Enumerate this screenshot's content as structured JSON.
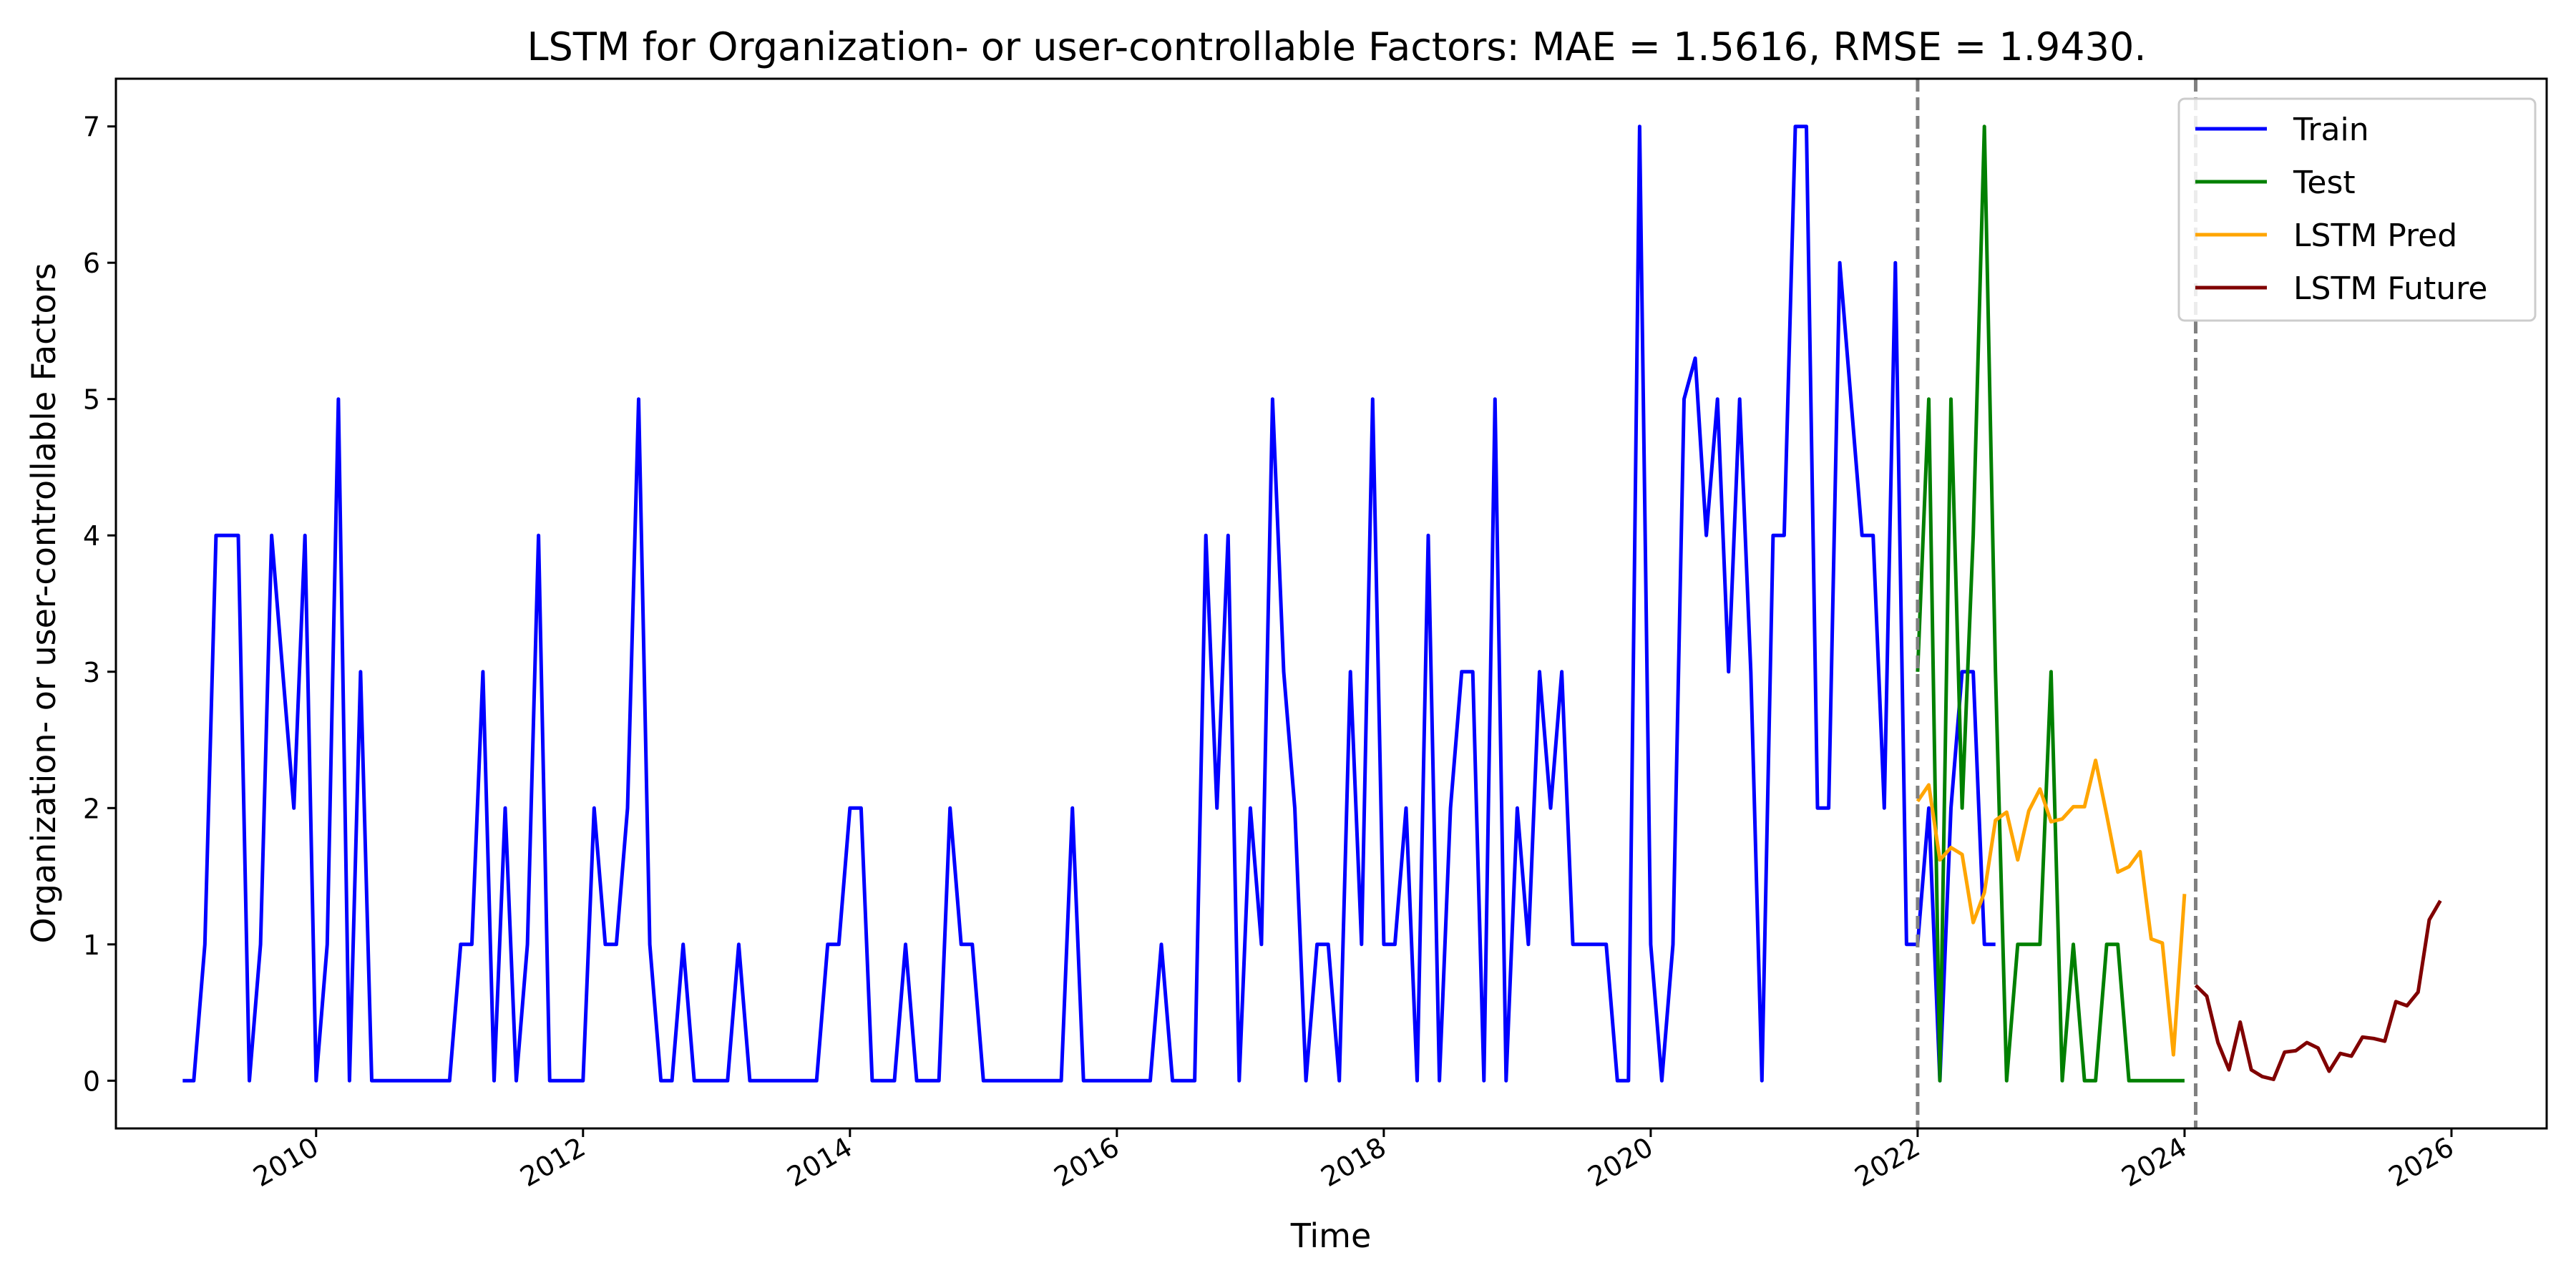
{
  "chart_data": {
    "type": "line",
    "title": "LSTM for Organization- or user-controllable Factors: MAE = 1.5616, RMSE = 1.9430.",
    "xlabel": "Time",
    "ylabel": "Organization- or user-controllable Factors",
    "xlim": [
      "2008-07-01",
      "2026-09-18"
    ],
    "ylim": [
      -0.35,
      7.35
    ],
    "x_ticks": [
      {
        "label": "2010",
        "date": "2010-01-01"
      },
      {
        "label": "2012",
        "date": "2012-01-01"
      },
      {
        "label": "2014",
        "date": "2014-01-01"
      },
      {
        "label": "2016",
        "date": "2016-01-01"
      },
      {
        "label": "2018",
        "date": "2018-01-01"
      },
      {
        "label": "2020",
        "date": "2020-01-01"
      },
      {
        "label": "2022",
        "date": "2022-01-01"
      },
      {
        "label": "2024",
        "date": "2024-01-01"
      },
      {
        "label": "2026",
        "date": "2026-01-01"
      }
    ],
    "y_ticks": [
      "0",
      "1",
      "2",
      "3",
      "4",
      "5",
      "6",
      "7"
    ],
    "grid": false,
    "legend_position": "top-right",
    "vertical_lines": [
      {
        "date": "2022-01-01",
        "style": "dashed",
        "color": "#808080"
      },
      {
        "date": "2024-02-01",
        "style": "dashed",
        "color": "#808080"
      }
    ],
    "series": [
      {
        "name": "Train",
        "color": "#0000ff",
        "start": "2009-01-01",
        "values": [
          0,
          0,
          1,
          4,
          4,
          4,
          0,
          1,
          4,
          3,
          2,
          4,
          0,
          1,
          5,
          0,
          3,
          0,
          0,
          0,
          0,
          0,
          0,
          0,
          0,
          1,
          1,
          3,
          0,
          2,
          0,
          1,
          4,
          0,
          0,
          0,
          0,
          2,
          1,
          1,
          2,
          5,
          1,
          0,
          0,
          1,
          0,
          0,
          0,
          0,
          1,
          0,
          0,
          0,
          0,
          0,
          0,
          0,
          1,
          1,
          2,
          2,
          0,
          0,
          0,
          1,
          0,
          0,
          0,
          2,
          1,
          1,
          0,
          0,
          0,
          0,
          0,
          0,
          0,
          0,
          2,
          0,
          0,
          0,
          0,
          0,
          0,
          0,
          1,
          0,
          0,
          0,
          4,
          2,
          4,
          0,
          2,
          1,
          5,
          3,
          2,
          0,
          1,
          1,
          0,
          3,
          1,
          5,
          1,
          1,
          2,
          0,
          4,
          0,
          2,
          3,
          3,
          0,
          5,
          0,
          2,
          1,
          3,
          2,
          3,
          1,
          1,
          1,
          1,
          0,
          0,
          7,
          1,
          0,
          1,
          5,
          5.3,
          4,
          5,
          3,
          5,
          3,
          0,
          4,
          4,
          7,
          7,
          2,
          2,
          6,
          5,
          4,
          4,
          2,
          6,
          1,
          1,
          2,
          0,
          2,
          3,
          3,
          1,
          1
        ]
      },
      {
        "name": "Test",
        "color": "#008000",
        "start": "2022-01-01",
        "values": [
          3,
          5,
          0,
          5,
          2,
          4,
          7,
          3,
          0,
          1,
          1,
          1,
          3,
          0,
          1,
          0,
          0,
          1,
          1,
          0,
          0,
          0,
          0,
          0,
          0
        ]
      },
      {
        "name": "LSTM Pred",
        "color": "#ffa500",
        "start": "2022-01-01",
        "values": [
          2.05,
          2.17,
          1.62,
          1.71,
          1.66,
          1.16,
          1.38,
          1.91,
          1.97,
          1.62,
          1.98,
          2.14,
          1.9,
          1.92,
          2.01,
          2.01,
          2.35,
          1.95,
          1.53,
          1.57,
          1.68,
          1.04,
          1.01,
          0.19,
          1.37
        ]
      },
      {
        "name": "LSTM Future",
        "color": "#800000",
        "start": "2024-02-01",
        "values": [
          0.7,
          0.62,
          0.28,
          0.08,
          0.43,
          0.08,
          0.03,
          0.01,
          0.21,
          0.22,
          0.28,
          0.24,
          0.07,
          0.2,
          0.18,
          0.32,
          0.31,
          0.29,
          0.58,
          0.55,
          0.65,
          1.18,
          1.32
        ]
      }
    ]
  }
}
